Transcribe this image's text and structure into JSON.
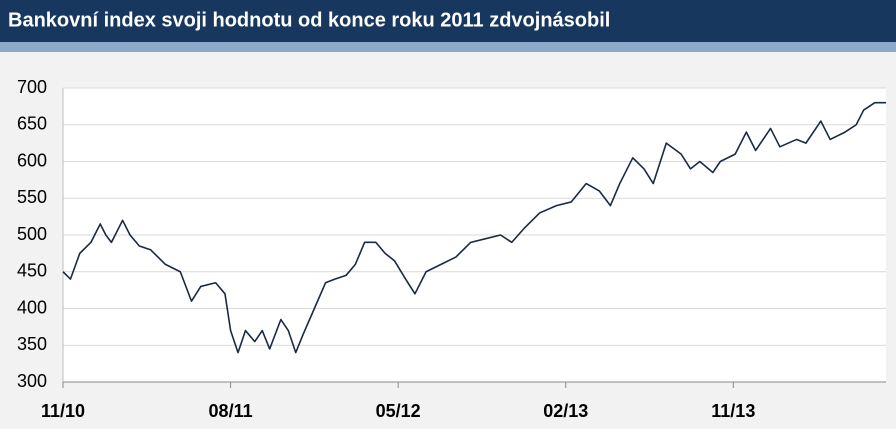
{
  "chart_data": {
    "type": "line",
    "title": "Bankovní index svoji hodnotu od konce roku 2011 zdvojnásobil",
    "x": [
      0,
      0.4,
      0.9,
      1.5,
      2,
      2.3,
      2.6,
      3.2,
      3.6,
      4.1,
      4.7,
      5.5,
      6.3,
      6.9,
      7.4,
      8.2,
      8.7,
      9,
      9.4,
      9.8,
      10.3,
      10.7,
      11.1,
      11.7,
      12.1,
      12.5,
      12.9,
      13.5,
      14.1,
      14.6,
      15.2,
      15.7,
      16.2,
      16.8,
      17.3,
      17.8,
      18.4,
      18.9,
      19.5,
      20.3,
      21.1,
      21.9,
      22.7,
      23.5,
      24.1,
      24.8,
      25.6,
      26.5,
      27.3,
      28.1,
      28.8,
      29.4,
      29.9,
      30.6,
      31.2,
      31.7,
      32.4,
      33.2,
      33.7,
      34.2,
      34.9,
      35.3,
      36.1,
      36.7,
      37.2,
      38,
      38.5,
      39.4,
      39.9,
      40.7,
      41.2,
      42,
      42.6,
      43,
      43.6,
      44.2
    ],
    "series": [
      {
        "name": "Bankovní index",
        "color": "#1b2a44",
        "values": [
          450,
          440,
          475,
          490,
          515,
          500,
          490,
          520,
          500,
          485,
          480,
          460,
          450,
          410,
          430,
          435,
          420,
          370,
          340,
          370,
          355,
          370,
          345,
          385,
          370,
          340,
          365,
          400,
          435,
          440,
          445,
          460,
          490,
          490,
          475,
          465,
          440,
          420,
          450,
          460,
          470,
          490,
          495,
          500,
          490,
          510,
          530,
          540,
          545,
          570,
          560,
          540,
          570,
          605,
          590,
          570,
          625,
          610,
          590,
          600,
          585,
          600,
          610,
          640,
          615,
          645,
          620,
          630,
          625,
          655,
          630,
          640,
          650,
          670,
          680,
          680
        ]
      }
    ],
    "xlim": [
      0,
      44.2
    ],
    "xticks": [
      {
        "value": 0,
        "label": "11/10"
      },
      {
        "value": 9,
        "label": "08/11"
      },
      {
        "value": 18,
        "label": "05/12"
      },
      {
        "value": 27,
        "label": "02/13"
      },
      {
        "value": 36,
        "label": "11/13"
      }
    ],
    "ylim": [
      300,
      700
    ],
    "yticks": [
      300,
      350,
      400,
      450,
      500,
      550,
      600,
      650,
      700
    ],
    "grid": true
  }
}
